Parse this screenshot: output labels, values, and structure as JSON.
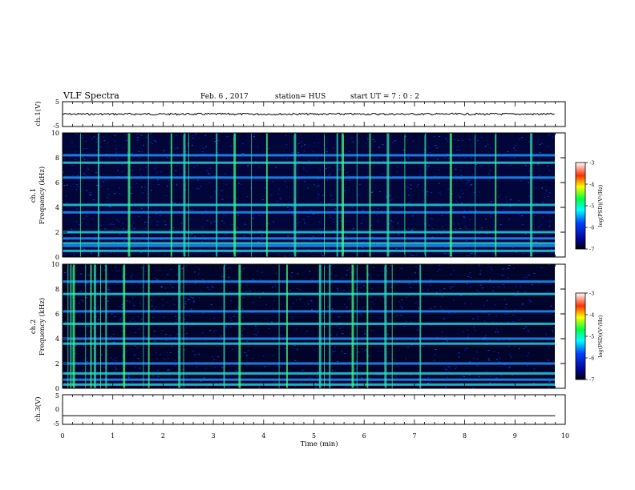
{
  "header": {
    "title": "VLF Spectra",
    "date": "Feb. 6  , 2017",
    "station": "station= HUS",
    "start": "start  UT =   7 : 0  : 2"
  },
  "chart_data": [
    {
      "type": "line",
      "panel": "ch1-waveform",
      "ylabel": "ch.1(V)",
      "ylim": [
        -5,
        5
      ],
      "yticks": [
        "5",
        "-5"
      ],
      "xlim": [
        0,
        10
      ],
      "series": [
        {
          "x": [
            0,
            9.8
          ],
          "y": [
            0,
            0
          ]
        }
      ]
    },
    {
      "type": "heatmap",
      "panel": "ch1-spectrogram",
      "ylabel": "ch.1\nFrequency  (kHz)",
      "ylim": [
        0,
        10
      ],
      "yticks": [
        "0",
        "2",
        "4",
        "6",
        "8",
        "10"
      ],
      "xlim": [
        0,
        10
      ],
      "colorbar": {
        "label": "log(PSD)(V²/Hz)",
        "range": [
          -7,
          -3
        ],
        "ticks": [
          "-3",
          "-4",
          "-5",
          "-6",
          "-7"
        ]
      },
      "bands_khz": [
        0.5,
        0.9,
        1.1,
        1.5,
        2.0,
        3.6,
        4.2,
        6.4,
        7.6,
        8.2
      ],
      "impulses_min": [
        0.35,
        0.7,
        1.3,
        1.7,
        2.15,
        2.4,
        2.5,
        3.05,
        3.4,
        3.75,
        4.05,
        4.6,
        5.2,
        5.45,
        5.55,
        5.85,
        6.1,
        6.45,
        6.8,
        7.2,
        7.7,
        8.2,
        8.6,
        9.3
      ]
    },
    {
      "type": "heatmap",
      "panel": "ch2-spectrogram",
      "ylabel": "ch.2\nFrequency  (kHz)",
      "ylim": [
        0,
        10
      ],
      "yticks": [
        "0",
        "2",
        "4",
        "6",
        "8",
        "10"
      ],
      "xlim": [
        0,
        10
      ],
      "colorbar": {
        "label": "log(PSD)(V²/Hz)",
        "range": [
          -7,
          -3
        ],
        "ticks": [
          "-3",
          "-4",
          "-5",
          "-6",
          "-7"
        ]
      },
      "bands_khz": [
        0.3,
        0.7,
        1.2,
        2.0,
        3.6,
        4.0,
        5.2,
        6.2,
        7.6,
        8.6
      ],
      "impulses_min": [
        0.1,
        0.15,
        0.2,
        0.45,
        0.55,
        0.62,
        0.75,
        0.85,
        1.2,
        1.6,
        1.7,
        2.3,
        2.4,
        3.2,
        3.5,
        4.3,
        4.45,
        5.1,
        5.2,
        5.3,
        5.75,
        5.85,
        6.05,
        6.4,
        6.55,
        7.1
      ]
    },
    {
      "type": "line",
      "panel": "ch3-waveform",
      "ylabel": "ch.3(V)",
      "ylim": [
        -5,
        5
      ],
      "yticks": [
        "5",
        "0",
        "-5"
      ],
      "xlim": [
        0,
        10
      ],
      "xlabel": "Time  (min)",
      "xticks": [
        "0",
        "1",
        "2",
        "3",
        "4",
        "5",
        "6",
        "7",
        "8",
        "9",
        "10"
      ],
      "series": [
        {
          "x": [
            0,
            9.8
          ],
          "y": [
            -2.1,
            -2.1
          ]
        }
      ]
    }
  ]
}
